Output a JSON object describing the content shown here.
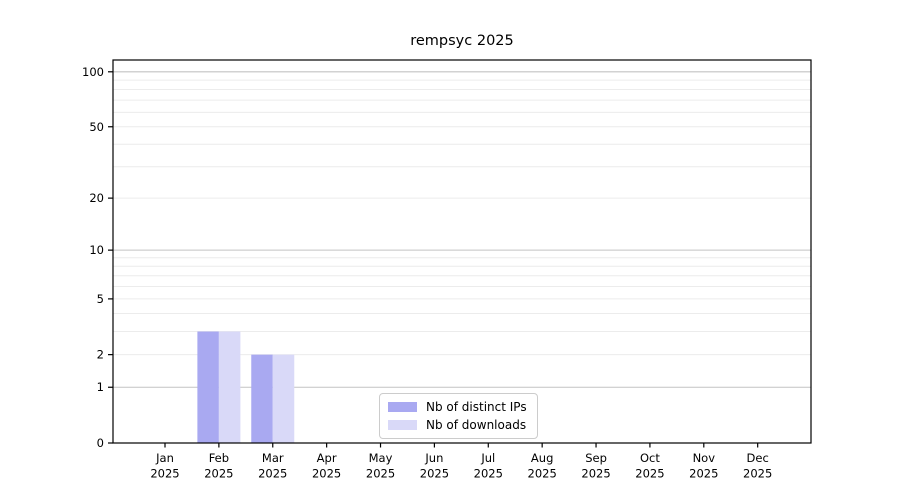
{
  "chart_data": {
    "type": "bar",
    "title": "rempsyc 2025",
    "x_months": [
      "Jan",
      "Feb",
      "Mar",
      "Apr",
      "May",
      "Jun",
      "Jul",
      "Aug",
      "Sep",
      "Oct",
      "Nov",
      "Dec"
    ],
    "x_year": "2025",
    "series": [
      {
        "name": "Nb of distinct IPs",
        "color": "#a9a9f1",
        "values": [
          0,
          3,
          2,
          0,
          0,
          0,
          0,
          0,
          0,
          0,
          0,
          0
        ]
      },
      {
        "name": "Nb of downloads",
        "color": "#d9d9f8",
        "values": [
          0,
          3,
          2,
          0,
          0,
          0,
          0,
          0,
          0,
          0,
          0,
          0
        ]
      }
    ],
    "y_scale": "log1p",
    "y_tick_labels": [
      0,
      1,
      2,
      5,
      10,
      20,
      50,
      100
    ],
    "y_grid_major": [
      1,
      10,
      100
    ],
    "y_grid_minor": [
      2,
      3,
      4,
      5,
      6,
      7,
      8,
      9,
      20,
      30,
      40,
      50,
      60,
      70,
      80,
      90
    ],
    "ylim": [
      0,
      116
    ],
    "grid": true,
    "legend_position": "lower center"
  }
}
